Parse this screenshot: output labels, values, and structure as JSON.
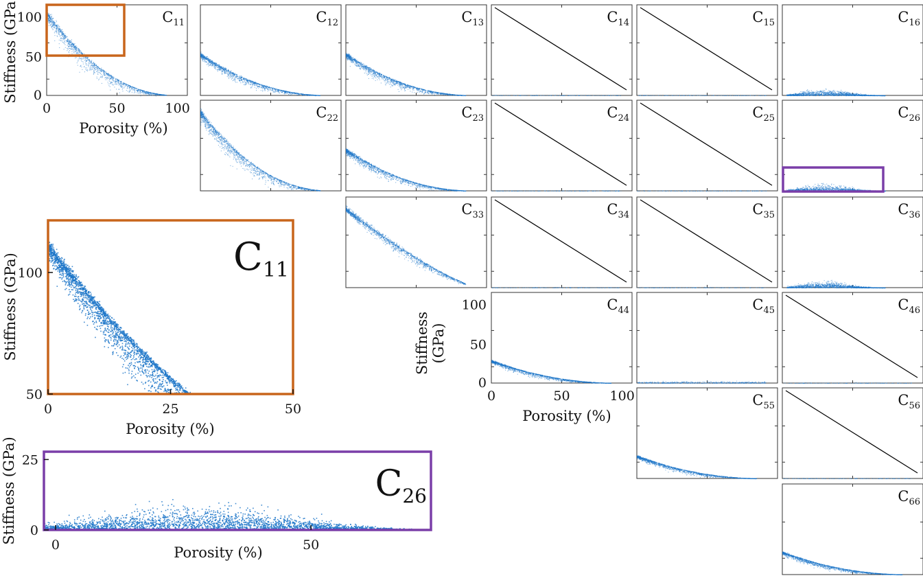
{
  "figure": {
    "accent_colors": {
      "points": "#1f77c9",
      "orange_box": "#c8651b",
      "purple_box": "#7a3ea8",
      "line": "#000000"
    }
  },
  "chart_data": {
    "type": "scatter",
    "grid": false,
    "matrix_panels": [
      {
        "id": "C11",
        "label": "C",
        "sub": "11",
        "row": 1,
        "col": 1,
        "kind": "decay",
        "y_at_0": 110,
        "xlim": [
          0,
          100
        ],
        "ylim": [
          0,
          120
        ],
        "xlabel": "Porosity (%)",
        "ylabel": "Stiffness (GPa)",
        "xticks": [
          "0",
          "50",
          "100"
        ],
        "yticks": [
          "0",
          "50",
          "100"
        ],
        "highlight_box": {
          "x": [
            0,
            52
          ],
          "y": [
            50,
            120
          ],
          "color": "orange"
        }
      },
      {
        "id": "C12",
        "label": "C",
        "sub": "12",
        "row": 1,
        "col": 2,
        "kind": "decay",
        "y_at_0": 55,
        "xlim": [
          0,
          100
        ],
        "ylim": [
          0,
          120
        ]
      },
      {
        "id": "C13",
        "label": "C",
        "sub": "13",
        "row": 1,
        "col": 3,
        "kind": "decay",
        "y_at_0": 55,
        "xlim": [
          0,
          100
        ],
        "ylim": [
          0,
          120
        ]
      },
      {
        "id": "C14",
        "label": "C",
        "sub": "14",
        "row": 1,
        "col": 4,
        "kind": "zero",
        "xlim": [
          0,
          100
        ],
        "ylim": [
          0,
          120
        ]
      },
      {
        "id": "C15",
        "label": "C",
        "sub": "15",
        "row": 1,
        "col": 5,
        "kind": "zero",
        "xlim": [
          0,
          100
        ],
        "ylim": [
          0,
          120
        ]
      },
      {
        "id": "C16",
        "label": "C",
        "sub": "16",
        "row": 1,
        "col": 6,
        "kind": "hump",
        "y_peak": 6,
        "xlim": [
          0,
          100
        ],
        "ylim": [
          0,
          120
        ]
      },
      {
        "id": "C22",
        "label": "C",
        "sub": "22",
        "row": 2,
        "col": 2,
        "kind": "decay",
        "y_at_0": 105,
        "xlim": [
          0,
          100
        ],
        "ylim": [
          0,
          120
        ]
      },
      {
        "id": "C23",
        "label": "C",
        "sub": "23",
        "row": 2,
        "col": 3,
        "kind": "decay",
        "y_at_0": 55,
        "xlim": [
          0,
          100
        ],
        "ylim": [
          0,
          120
        ]
      },
      {
        "id": "C24",
        "label": "C",
        "sub": "24",
        "row": 2,
        "col": 4,
        "kind": "zero",
        "xlim": [
          0,
          100
        ],
        "ylim": [
          0,
          120
        ]
      },
      {
        "id": "C25",
        "label": "C",
        "sub": "25",
        "row": 2,
        "col": 5,
        "kind": "zero",
        "xlim": [
          0,
          100
        ],
        "ylim": [
          0,
          120
        ]
      },
      {
        "id": "C26",
        "label": "C",
        "sub": "26",
        "row": 2,
        "col": 6,
        "kind": "hump",
        "y_peak": 6,
        "xlim": [
          0,
          100
        ],
        "ylim": [
          0,
          120
        ],
        "highlight_box": {
          "x": [
            0,
            72
          ],
          "y": [
            0,
            25
          ],
          "color": "purple"
        }
      },
      {
        "id": "C33",
        "label": "C",
        "sub": "33",
        "row": 3,
        "col": 3,
        "kind": "band",
        "y_at_0": 105,
        "xlim": [
          0,
          100
        ],
        "ylim": [
          0,
          120
        ]
      },
      {
        "id": "C34",
        "label": "C",
        "sub": "34",
        "row": 3,
        "col": 4,
        "kind": "zero",
        "xlim": [
          0,
          100
        ],
        "ylim": [
          0,
          120
        ]
      },
      {
        "id": "C35",
        "label": "C",
        "sub": "35",
        "row": 3,
        "col": 5,
        "kind": "zero",
        "xlim": [
          0,
          100
        ],
        "ylim": [
          0,
          120
        ]
      },
      {
        "id": "C36",
        "label": "C",
        "sub": "36",
        "row": 3,
        "col": 6,
        "kind": "hump",
        "y_peak": 6,
        "xlim": [
          0,
          100
        ],
        "ylim": [
          0,
          120
        ]
      },
      {
        "id": "C44",
        "label": "C",
        "sub": "44",
        "row": 4,
        "col": 4,
        "kind": "decay",
        "y_at_0": 30,
        "xlim": [
          0,
          100
        ],
        "ylim": [
          0,
          120
        ],
        "xlabel": "Porosity (%)",
        "ylabel": "Stiffness (GPa)",
        "xticks": [
          "0",
          "50",
          "100"
        ],
        "yticks": [
          "0",
          "50",
          "100"
        ]
      },
      {
        "id": "C45",
        "label": "C",
        "sub": "45",
        "row": 4,
        "col": 5,
        "kind": "flat",
        "y_level": 1,
        "xlim": [
          0,
          100
        ],
        "ylim": [
          0,
          120
        ]
      },
      {
        "id": "C46",
        "label": "C",
        "sub": "46",
        "row": 4,
        "col": 6,
        "kind": "zero",
        "xlim": [
          0,
          100
        ],
        "ylim": [
          0,
          120
        ]
      },
      {
        "id": "C55",
        "label": "C",
        "sub": "55",
        "row": 5,
        "col": 5,
        "kind": "decay",
        "y_at_0": 30,
        "xlim": [
          0,
          100
        ],
        "ylim": [
          0,
          120
        ]
      },
      {
        "id": "C56",
        "label": "C",
        "sub": "56",
        "row": 5,
        "col": 6,
        "kind": "zero",
        "xlim": [
          0,
          100
        ],
        "ylim": [
          0,
          120
        ]
      },
      {
        "id": "C66",
        "label": "C",
        "sub": "66",
        "row": 6,
        "col": 6,
        "kind": "decay",
        "y_at_0": 30,
        "xlim": [
          0,
          100
        ],
        "ylim": [
          0,
          120
        ]
      }
    ],
    "zoom_panels": [
      {
        "id": "zoom-C11",
        "label": "C",
        "sub": "11",
        "kind": "decay",
        "y_at_0": 110,
        "xlim": [
          0,
          50
        ],
        "ylim": [
          50,
          120
        ],
        "xlabel": "Porosity (%)",
        "ylabel": "Stiffness (GPa)",
        "xticks": [
          "0",
          "25",
          "50"
        ],
        "yticks": [
          "50",
          "100"
        ],
        "border": "orange"
      },
      {
        "id": "zoom-C26",
        "label": "C",
        "sub": "26",
        "kind": "hump",
        "y_peak": 6,
        "xlim": [
          0,
          72
        ],
        "ylim": [
          0,
          25
        ],
        "xlabel": "Porosity (%)",
        "ylabel": "Stiffness (GPa)",
        "xticks": [
          "0",
          "50"
        ],
        "yticks": [
          "0",
          "25"
        ],
        "border": "purple"
      }
    ]
  }
}
